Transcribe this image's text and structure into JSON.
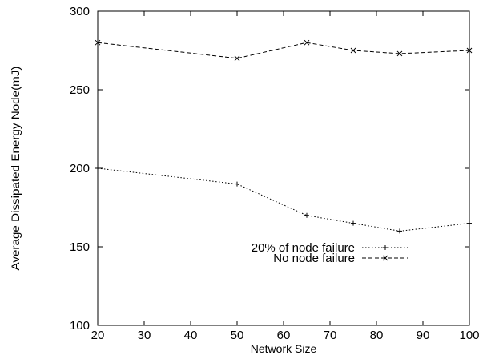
{
  "chart_data": {
    "type": "line",
    "xlabel": "Network Size",
    "ylabel": "Average Dissipated Energy Node(mJ)",
    "xlim": [
      20,
      100
    ],
    "ylim": [
      100,
      300
    ],
    "x_ticks": [
      20,
      30,
      40,
      50,
      60,
      70,
      80,
      90,
      100
    ],
    "y_ticks": [
      100,
      150,
      200,
      250,
      300
    ],
    "grid": false,
    "legend_position": "center",
    "series": [
      {
        "name": "20% of node failure",
        "x": [
          20,
          50,
          65,
          75,
          85,
          100
        ],
        "y": [
          200,
          190,
          170,
          165,
          160,
          165
        ],
        "line_style": "dotted",
        "marker": "+"
      },
      {
        "name": "No node failure",
        "x": [
          20,
          50,
          65,
          75,
          85,
          100
        ],
        "y": [
          280,
          270,
          280,
          275,
          273,
          275
        ],
        "line_style": "dashed",
        "marker": "x"
      }
    ]
  }
}
